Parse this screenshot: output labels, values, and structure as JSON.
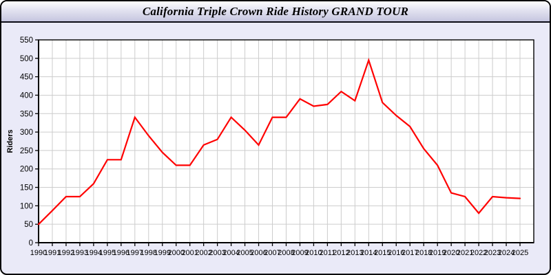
{
  "window": {
    "title": "California Triple Crown Ride History GRAND TOUR"
  },
  "colors": {
    "window_bg": "#eaeaf8",
    "title_grad_top": "#fdfdfe",
    "title_grad_bottom": "#c6c6e0",
    "plot_bg": "#ffffff",
    "grid": "#cccccc",
    "axis": "#000000",
    "tick_text": "#000000"
  },
  "chart_data": {
    "type": "line",
    "title": "California Triple Crown Ride History GRAND TOUR",
    "xlabel": "",
    "ylabel": "Riders",
    "x": [
      "1990",
      "1991",
      "1992",
      "1993",
      "1994",
      "1995",
      "1996",
      "1997",
      "1998",
      "1999",
      "2000",
      "2001",
      "2002",
      "2003",
      "2004",
      "2005",
      "2006",
      "2007",
      "2008",
      "2009",
      "2010",
      "2011",
      "2012",
      "2013",
      "2014",
      "2015",
      "2016",
      "2017",
      "2018",
      "2019",
      "2020",
      "2021",
      "2022",
      "2023",
      "2024",
      "2025"
    ],
    "values": [
      50,
      87,
      125,
      125,
      160,
      225,
      225,
      340,
      290,
      245,
      210,
      210,
      265,
      280,
      340,
      305,
      265,
      340,
      340,
      390,
      370,
      375,
      410,
      385,
      495,
      380,
      345,
      315,
      255,
      210,
      135,
      125,
      80,
      125,
      122,
      120
    ],
    "ylim": [
      0,
      550
    ],
    "yticks": [
      0,
      50,
      100,
      150,
      200,
      250,
      300,
      350,
      400,
      450,
      500,
      550
    ],
    "grid": true,
    "legend": "none",
    "line_color": "#ff0000"
  }
}
